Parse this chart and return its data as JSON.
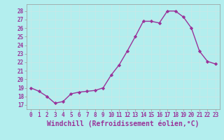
{
  "x": [
    0,
    1,
    2,
    3,
    4,
    5,
    6,
    7,
    8,
    9,
    10,
    11,
    12,
    13,
    14,
    15,
    16,
    17,
    18,
    19,
    20,
    21,
    22,
    23
  ],
  "y": [
    19,
    18.6,
    18,
    17.2,
    17.4,
    18.3,
    18.5,
    18.6,
    18.7,
    19,
    20.5,
    21.7,
    23.3,
    25,
    26.8,
    26.8,
    26.6,
    28,
    28,
    27.3,
    26,
    23.3,
    22.1,
    21.8
  ],
  "line_color": "#993399",
  "marker": "D",
  "marker_size": 2.2,
  "bg_color": "#b3eeee",
  "grid_color": "#d0f0f0",
  "grid_color2": "#cccccc",
  "xlabel": "Windchill (Refroidissement éolien,°C)",
  "xlabel_color": "#993399",
  "xlim": [
    -0.5,
    23.5
  ],
  "ylim": [
    16.5,
    28.8
  ],
  "yticks": [
    17,
    18,
    19,
    20,
    21,
    22,
    23,
    24,
    25,
    26,
    27,
    28
  ],
  "xticks": [
    0,
    1,
    2,
    3,
    4,
    5,
    6,
    7,
    8,
    9,
    10,
    11,
    12,
    13,
    14,
    15,
    16,
    17,
    18,
    19,
    20,
    21,
    22,
    23
  ],
  "tick_label_fontsize": 5.5,
  "xlabel_fontsize": 7,
  "line_width": 1.0
}
